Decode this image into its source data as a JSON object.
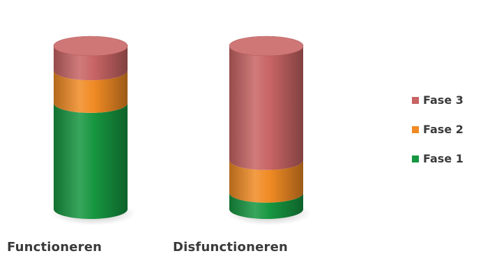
{
  "chart_data": {
    "type": "bar",
    "stacked": true,
    "style": "3d-cylinder",
    "categories": [
      "Functioneren",
      "Disfunctioneren"
    ],
    "series": [
      {
        "name": "Fase 1",
        "color": "#169640",
        "values": [
          65,
          10
        ]
      },
      {
        "name": "Fase 2",
        "color": "#f08a24",
        "values": [
          20,
          20
        ]
      },
      {
        "name": "Fase 3",
        "color": "#c86464",
        "values": [
          15,
          70
        ]
      }
    ],
    "ylim": [
      0,
      100
    ],
    "legend_position": "right",
    "grid": false,
    "title": "",
    "xlabel": "",
    "ylabel": ""
  }
}
